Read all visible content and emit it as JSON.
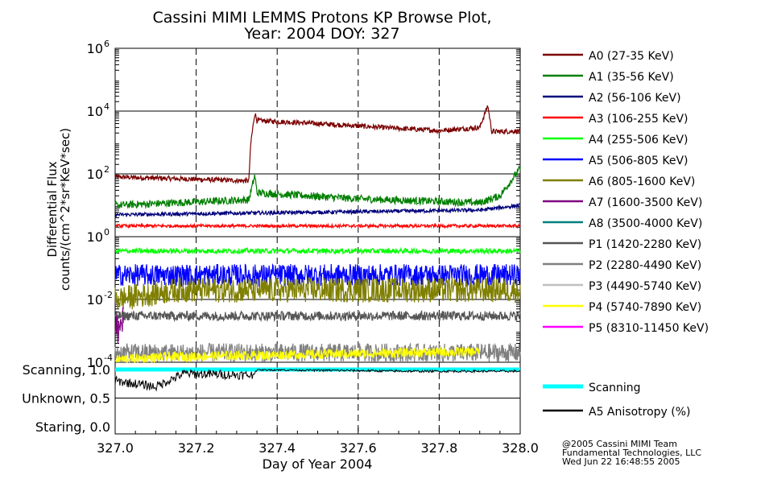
{
  "chart_data": {
    "type": "line",
    "title": "Cassini MIMI LEMMS Protons KP Browse Plot,",
    "subtitle": "Year: 2004 DOY: 327",
    "xlabel": "Day of Year 2004",
    "ylabel_line1": "Differential Flux",
    "ylabel_line2": "counts/(cm^2*sr*KeV*sec)",
    "xlim": [
      327.0,
      328.0
    ],
    "ylim_log": [
      0.0001,
      1000000.0
    ],
    "x_ticks": [
      "327.0",
      "327.2",
      "327.4",
      "327.6",
      "327.8",
      "328.0"
    ],
    "y_ticks": [
      {
        "base": "10",
        "exp": "6"
      },
      {
        "base": "10",
        "exp": "4"
      },
      {
        "base": "10",
        "exp": "2"
      },
      {
        "base": "10",
        "exp": "0"
      },
      {
        "base": "10",
        "exp": "-2"
      },
      {
        "base": "10",
        "exp": "-4"
      }
    ],
    "grid": "x dashed, y solid",
    "series": [
      {
        "name": "A0 (27-35 KeV)",
        "color": "#7b0000",
        "x": [
          327.0,
          327.33,
          327.335,
          327.345,
          327.35,
          327.5,
          327.7,
          327.8,
          327.9,
          327.92,
          327.93,
          328.0
        ],
        "values": [
          80,
          60,
          1000,
          9000,
          5000,
          4000,
          2800,
          2400,
          3000,
          15000,
          2200,
          2300
        ]
      },
      {
        "name": "A1 (35-56 KeV)",
        "color": "#007f00",
        "x": [
          327.0,
          327.33,
          327.345,
          327.35,
          327.6,
          327.9,
          327.95,
          328.0
        ],
        "values": [
          10,
          15,
          90,
          25,
          16,
          12,
          20,
          150
        ]
      },
      {
        "name": "A2 (56-106 KeV)",
        "color": "#00007b",
        "x": [
          327.0,
          327.5,
          327.9,
          328.0
        ],
        "values": [
          5,
          6,
          7,
          10
        ]
      },
      {
        "name": "A3 (106-255 KeV)",
        "color": "#ff0000",
        "x": [
          327.0,
          328.0
        ],
        "values": [
          2.2,
          2.2
        ]
      },
      {
        "name": "A4 (255-506 KeV)",
        "color": "#00ff00",
        "x": [
          327.0,
          328.0
        ],
        "values": [
          0.35,
          0.35
        ]
      },
      {
        "name": "A5 (506-805 KeV)",
        "color": "#0000ff",
        "x": [
          327.0,
          328.0
        ],
        "values": [
          0.06,
          0.06
        ]
      },
      {
        "name": "A6 (805-1600 KeV)",
        "color": "#7f7f00",
        "x": [
          327.0,
          327.15,
          328.0
        ],
        "values": [
          0.01,
          0.02,
          0.02
        ]
      },
      {
        "name": "A7 (1600-3500 KeV)",
        "color": "#7f007f",
        "x": [
          327.0,
          327.02
        ],
        "values": [
          0.001,
          0.002
        ]
      },
      {
        "name": "A8 (3500-4000 KeV)",
        "color": "#007f7f",
        "x": [],
        "values": []
      },
      {
        "name": "P1 (1420-2280 KeV)",
        "color": "#555555",
        "x": [
          327.0,
          328.0
        ],
        "values": [
          0.003,
          0.003
        ]
      },
      {
        "name": "P2 (2280-4490 KeV)",
        "color": "#7f7f7f",
        "x": [
          327.0,
          328.0
        ],
        "values": [
          0.0002,
          0.0002
        ]
      },
      {
        "name": "P3 (4490-5740 KeV)",
        "color": "#bfbfbf",
        "x": [],
        "values": []
      },
      {
        "name": "P4 (5740-7890 KeV)",
        "color": "#ffff00",
        "x": [
          327.0,
          327.13,
          327.9
        ],
        "values": [
          0.00012,
          0.00015,
          0.00022
        ]
      },
      {
        "name": "P5 (8310-11450 KeV)",
        "color": "#ff00ff",
        "x": [],
        "values": []
      }
    ],
    "lower_panel": {
      "y_ticks": [
        "Scanning, 1.0",
        "Unknown, 0.5",
        "Staring, 0.0"
      ],
      "series": [
        {
          "name": "Scanning",
          "color": "#00ffff",
          "x": [
            327.0,
            328.0
          ],
          "values": [
            1.0,
            1.0
          ]
        },
        {
          "name": "A5 Anisotropy (%)",
          "color": "#000000",
          "x": [
            327.0,
            327.1,
            327.17,
            327.34,
            327.35,
            327.73,
            328.0
          ],
          "values": [
            0.8,
            0.7,
            0.93,
            0.9,
            1.0,
            0.97,
            0.97
          ]
        }
      ]
    }
  },
  "footer": {
    "line1": "@2005 Cassini MIMI Team",
    "line2": "Fundamental Technologies, LLC",
    "line3": "Wed Jun 22 16:48:55 2005"
  }
}
